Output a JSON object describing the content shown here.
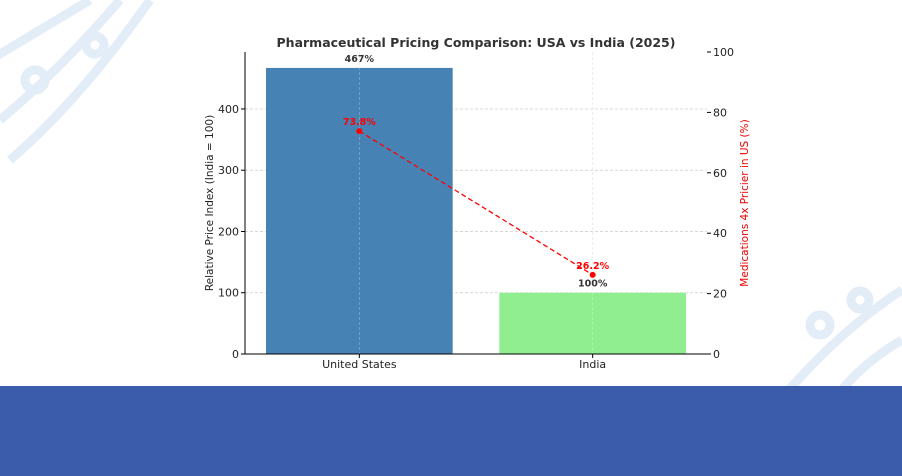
{
  "chart_data": {
    "type": "bar",
    "title": "Pharmaceutical Pricing Comparison: USA vs India (2025)",
    "categories": [
      "United States",
      "India"
    ],
    "values": [
      467,
      100
    ],
    "bar_labels": [
      "467%",
      "100%"
    ],
    "bar_colors": [
      "#4682b4",
      "#90ee90"
    ],
    "ylabel": "Relative Price Index (India = 100)",
    "ylim": [
      0,
      493
    ],
    "yticks": [
      0,
      100,
      200,
      300,
      400
    ],
    "secondary": {
      "type": "line",
      "values": [
        73.8,
        26.2
      ],
      "labels": [
        "73.8%",
        "26.2%"
      ],
      "ylabel": "Medications 4x Pricier in US (%)",
      "ylim": [
        0,
        100
      ],
      "yticks": [
        0,
        20,
        40,
        60,
        80,
        100
      ],
      "color": "#ff0000"
    },
    "grid": true
  }
}
